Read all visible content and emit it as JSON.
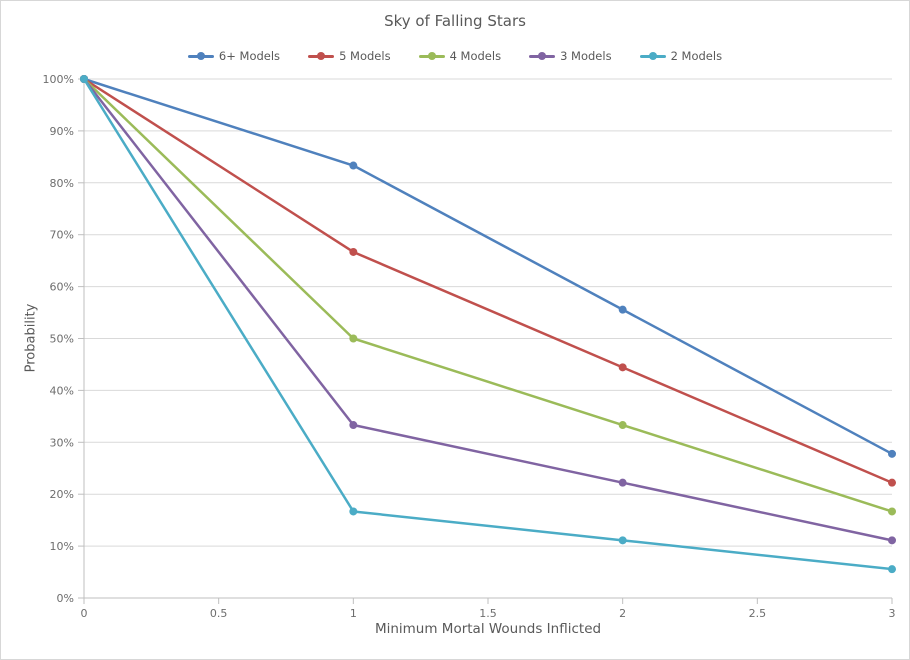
{
  "chart_data": {
    "type": "line",
    "title": "Sky of Falling Stars",
    "xlabel": "Minimum Mortal Wounds Inflicted",
    "ylabel": "Probability",
    "x": [
      0,
      1,
      2,
      3
    ],
    "xlim": [
      0,
      3
    ],
    "ylim": [
      0,
      100
    ],
    "x_ticks": [
      0,
      0.5,
      1,
      1.5,
      2,
      2.5,
      3
    ],
    "x_tick_labels": [
      "0",
      "0.5",
      "1",
      "1.5",
      "2",
      "2.5",
      "3"
    ],
    "y_ticks": [
      0,
      10,
      20,
      30,
      40,
      50,
      60,
      70,
      80,
      90,
      100
    ],
    "y_tick_labels": [
      "0%",
      "10%",
      "20%",
      "30%",
      "40%",
      "50%",
      "60%",
      "70%",
      "80%",
      "90%",
      "100%"
    ],
    "grid": "horizontal",
    "legend_position": "top",
    "markers": true,
    "series": [
      {
        "name": "6+ Models",
        "color": "#4F81BD",
        "values": [
          100,
          83.33,
          55.56,
          27.78
        ]
      },
      {
        "name": "5 Models",
        "color": "#C0504D",
        "values": [
          100,
          66.67,
          44.44,
          22.22
        ]
      },
      {
        "name": "4 Models",
        "color": "#9BBB59",
        "values": [
          100,
          50.0,
          33.33,
          16.67
        ]
      },
      {
        "name": "3 Models",
        "color": "#8064A2",
        "values": [
          100,
          33.33,
          22.22,
          11.11
        ]
      },
      {
        "name": "2 Models",
        "color": "#4BACC6",
        "values": [
          100,
          16.67,
          11.11,
          5.56
        ]
      }
    ]
  },
  "colors": {
    "gridline": "#D9D9D9",
    "axis_line": "#BFBFBF",
    "title_text": "#595959",
    "tick_text": "#6D6D6D",
    "frame_border": "#D7D7D7"
  }
}
